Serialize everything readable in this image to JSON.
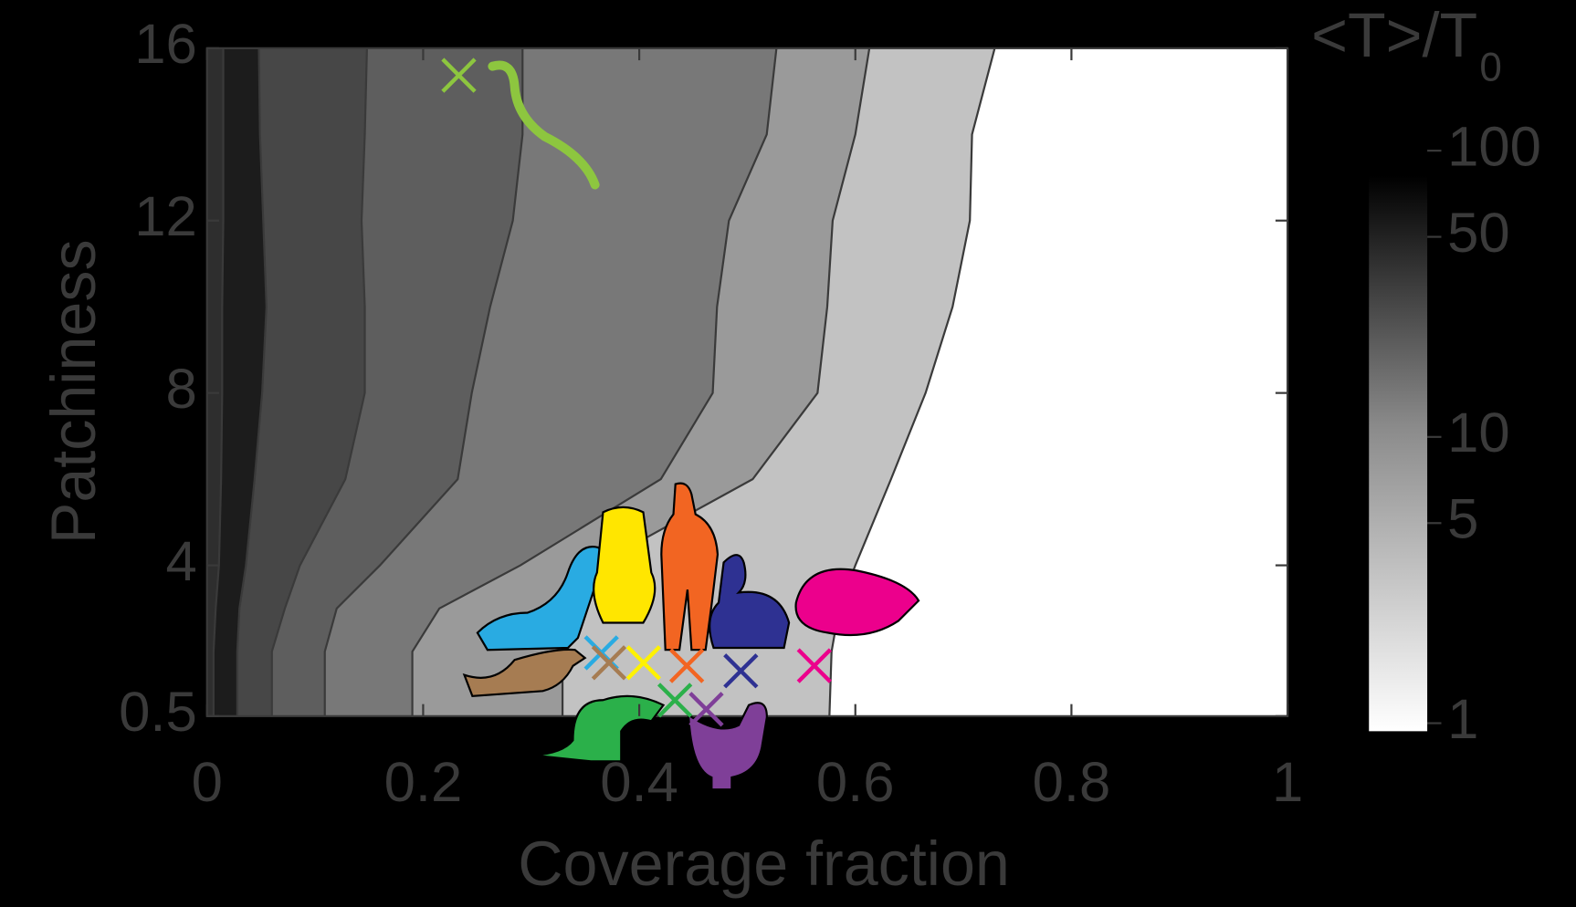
{
  "chart_data": {
    "type": "contour",
    "xlabel": "Coverage fraction",
    "ylabel": "Patchiness",
    "xlim": [
      0,
      1
    ],
    "xticks": [
      0,
      0.2,
      0.4,
      0.6,
      0.8,
      1
    ],
    "ylim": [
      0.5,
      16
    ],
    "yticks": [
      0.5,
      4,
      8,
      12,
      16
    ],
    "y": [
      16,
      14,
      12,
      10,
      8,
      6,
      4,
      3,
      2,
      0.5
    ],
    "contours": [
      {
        "x": [
          0.015,
          0.015,
          0.015,
          0.014,
          0.014,
          0.013,
          0.011,
          0.008,
          0.006,
          0.006
        ]
      },
      {
        "x": [
          0.048,
          0.049,
          0.052,
          0.055,
          0.051,
          0.044,
          0.036,
          0.03,
          0.028,
          0.028
        ]
      },
      {
        "x": [
          0.148,
          0.146,
          0.143,
          0.146,
          0.146,
          0.128,
          0.086,
          0.072,
          0.06,
          0.06
        ]
      },
      {
        "x": [
          0.292,
          0.292,
          0.283,
          0.262,
          0.245,
          0.232,
          0.16,
          0.12,
          0.109,
          0.109
        ]
      },
      {
        "x": [
          0.527,
          0.518,
          0.483,
          0.472,
          0.468,
          0.42,
          0.29,
          0.215,
          0.19,
          0.19
        ]
      },
      {
        "x": [
          0.613,
          0.6,
          0.579,
          0.574,
          0.565,
          0.505,
          0.36,
          0.33,
          0.329,
          0.329
        ]
      },
      {
        "x": [
          0.729,
          0.708,
          0.706,
          0.69,
          0.665,
          0.633,
          0.6,
          0.585,
          0.578,
          0.576
        ]
      }
    ],
    "fill_colors": [
      "#2e2e2e",
      "#1c1c1c",
      "#474747",
      "#5e5e5e",
      "#787878",
      "#9a9a9a",
      "#c2c2c2",
      "#ffffff"
    ],
    "points": [
      {
        "x": 0.233,
        "y": 15.37,
        "color": "#8dc63f"
      },
      {
        "x": 0.365,
        "y": 1.97,
        "color": "#29abe2"
      },
      {
        "x": 0.372,
        "y": 1.74,
        "color": "#a67c52"
      },
      {
        "x": 0.404,
        "y": 1.74,
        "color": "#fff200"
      },
      {
        "x": 0.444,
        "y": 1.67,
        "color": "#f26522"
      },
      {
        "x": 0.494,
        "y": 1.55,
        "color": "#2e3192"
      },
      {
        "x": 0.562,
        "y": 1.67,
        "color": "#ec008c"
      },
      {
        "x": 0.433,
        "y": 0.87,
        "color": "#2bb04a"
      },
      {
        "x": 0.462,
        "y": 0.66,
        "color": "#7f3f98"
      }
    ],
    "colorbar": {
      "label": "<T>/T",
      "label_sub": "0",
      "log": true,
      "lim": [
        1,
        100
      ],
      "ticks": [
        1,
        5,
        10,
        50,
        100
      ]
    }
  }
}
